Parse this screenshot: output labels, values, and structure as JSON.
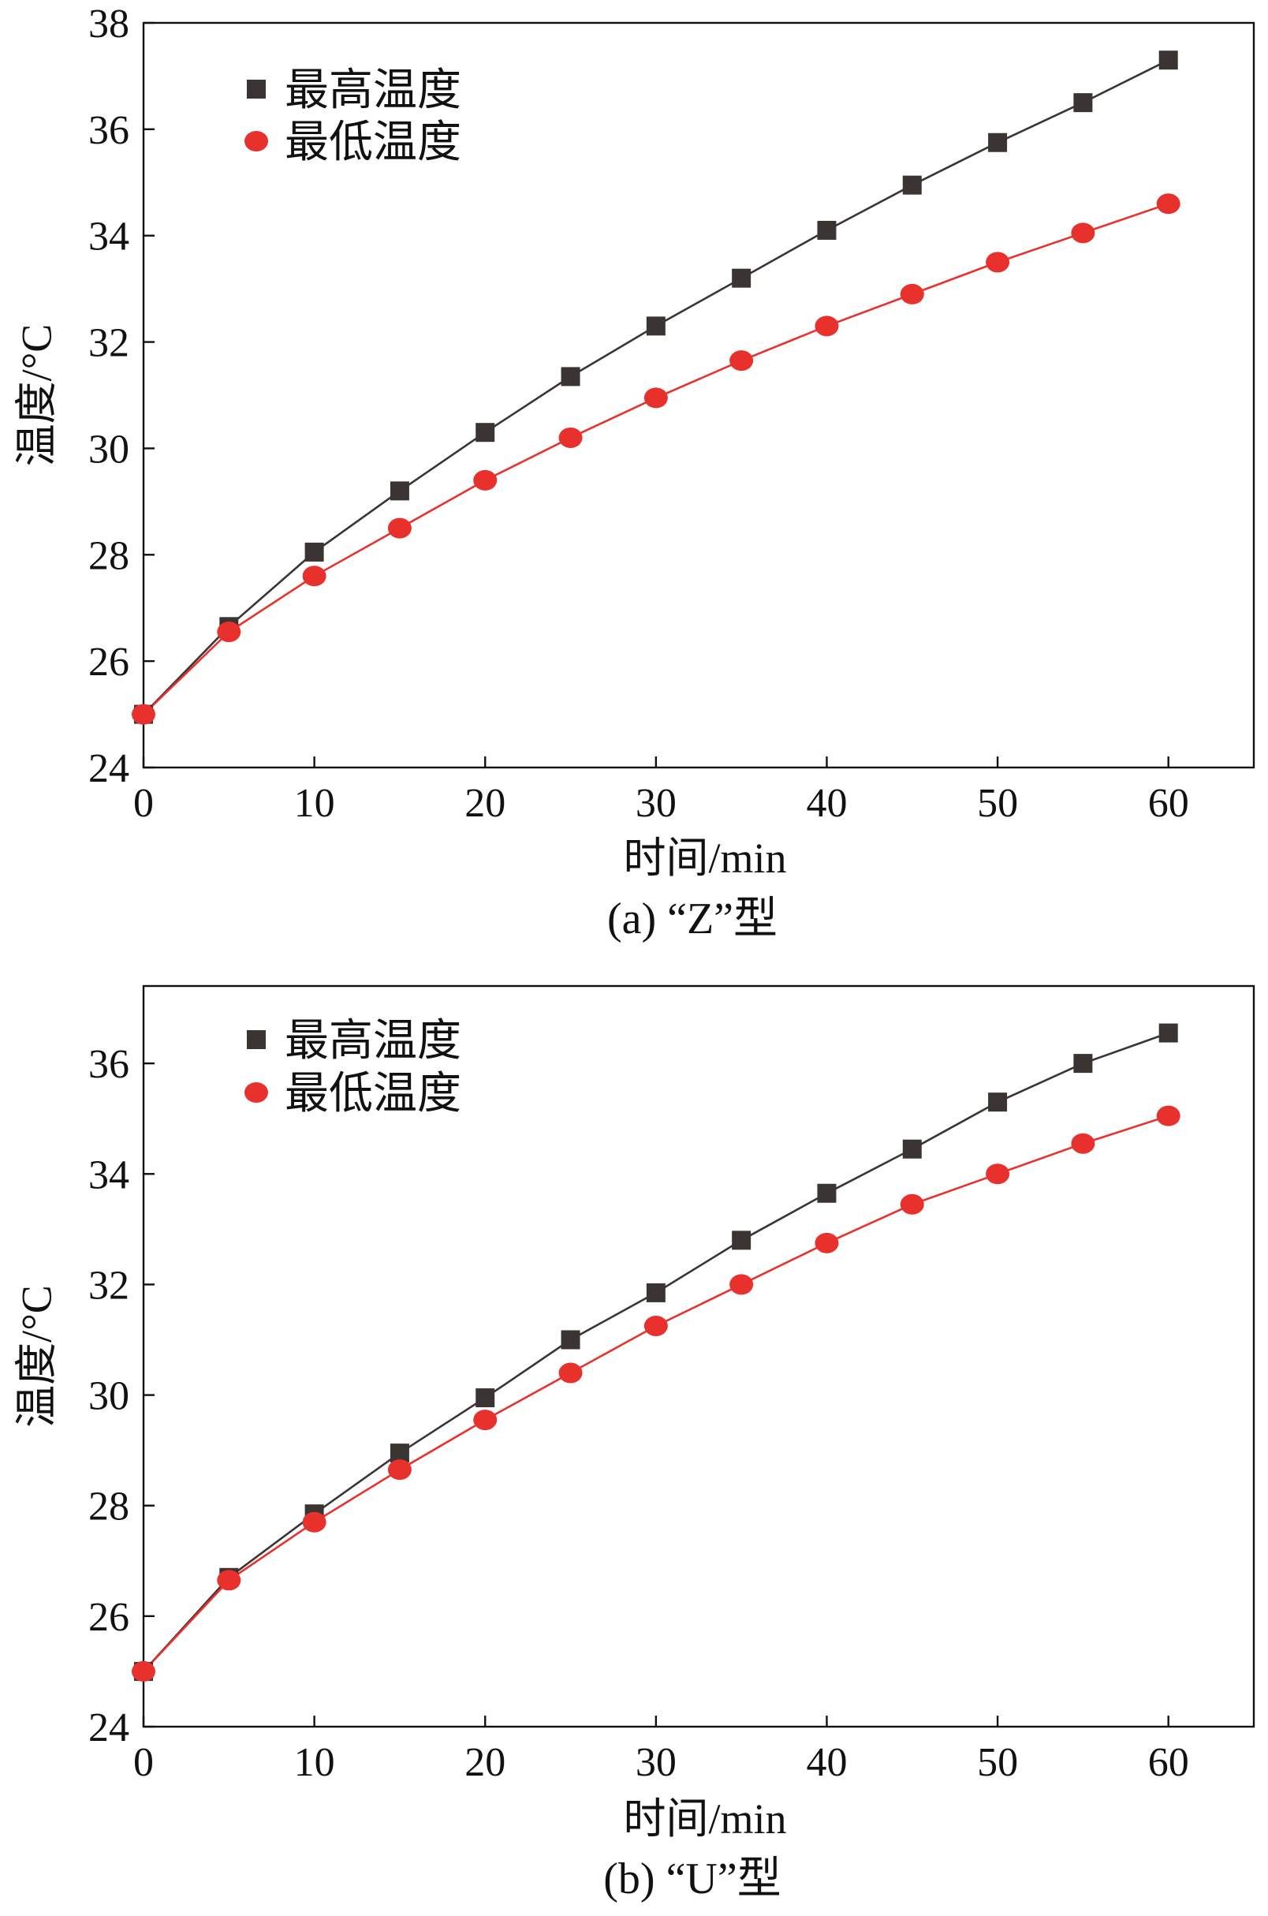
{
  "chart_data": [
    {
      "type": "line",
      "caption": "(a) “Z”型",
      "xlabel": "时间/min",
      "ylabel": "温度/°C",
      "xlim": [
        0,
        65
      ],
      "ylim": [
        24,
        38
      ],
      "xticks": [
        0,
        10,
        20,
        30,
        40,
        50,
        60
      ],
      "yticks": [
        24,
        26,
        28,
        30,
        32,
        34,
        36,
        38
      ],
      "legend_position": "top-left",
      "grid": false,
      "x": [
        0,
        5,
        10,
        15,
        20,
        25,
        30,
        35,
        40,
        45,
        50,
        55,
        60
      ],
      "series": [
        {
          "name": "最高温度",
          "color": "#3a3533",
          "marker": "square",
          "values": [
            25.0,
            26.65,
            28.05,
            29.2,
            30.3,
            31.35,
            32.3,
            33.2,
            34.1,
            34.95,
            35.75,
            36.5,
            37.3
          ]
        },
        {
          "name": "最低温度",
          "color": "#e8312d",
          "marker": "circle",
          "values": [
            25.0,
            26.55,
            27.6,
            28.5,
            29.4,
            30.2,
            30.95,
            31.65,
            32.3,
            32.9,
            33.5,
            34.05,
            34.6
          ]
        }
      ]
    },
    {
      "type": "line",
      "caption": "(b) “U”型",
      "xlabel": "时间/min",
      "ylabel": "温度/°C",
      "xlim": [
        0,
        65
      ],
      "ylim": [
        24,
        37.4
      ],
      "xticks": [
        0,
        10,
        20,
        30,
        40,
        50,
        60
      ],
      "yticks": [
        24,
        26,
        28,
        30,
        32,
        34,
        36
      ],
      "legend_position": "top-left",
      "grid": false,
      "x": [
        0,
        5,
        10,
        15,
        20,
        25,
        30,
        35,
        40,
        45,
        50,
        55,
        60
      ],
      "series": [
        {
          "name": "最高温度",
          "color": "#3a3533",
          "marker": "square",
          "values": [
            25.0,
            26.7,
            27.85,
            28.95,
            29.95,
            31.0,
            31.85,
            32.8,
            33.65,
            34.45,
            35.3,
            36.0,
            36.55
          ]
        },
        {
          "name": "最低温度",
          "color": "#e8312d",
          "marker": "circle",
          "values": [
            25.0,
            26.65,
            27.7,
            28.65,
            29.55,
            30.4,
            31.25,
            32.0,
            32.75,
            33.45,
            34.0,
            34.55,
            35.05
          ]
        }
      ]
    }
  ]
}
